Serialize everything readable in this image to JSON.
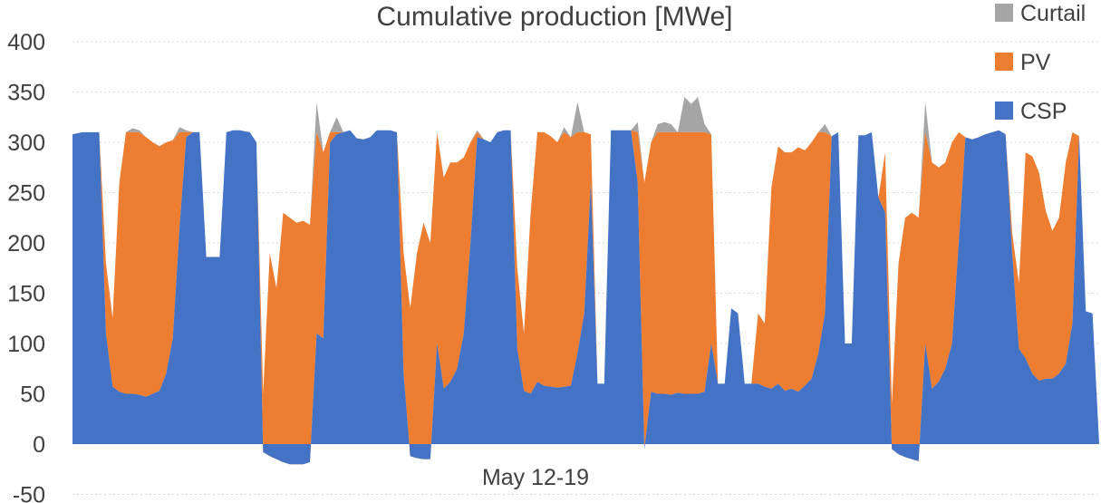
{
  "chart_data": {
    "type": "area",
    "title": "Cumulative production [MWe]",
    "xlabel": "May 12-19",
    "ylabel": "",
    "ylim": [
      -50,
      400
    ],
    "yticks": [
      -50,
      0,
      50,
      100,
      150,
      200,
      250,
      300,
      350,
      400
    ],
    "grid": true,
    "legend_position": "top-right",
    "stacked": true,
    "series": [
      {
        "name": "Curtail",
        "color": "#a5a5a5"
      },
      {
        "name": "PV",
        "color": "#ed7d31"
      },
      {
        "name": "CSP",
        "color": "#4472c4"
      }
    ],
    "total_points": [
      [
        0,
        308
      ],
      [
        3,
        310
      ],
      [
        8,
        310
      ],
      [
        10,
        180
      ],
      [
        12,
        125
      ],
      [
        14,
        260
      ],
      [
        16,
        310
      ],
      [
        18,
        314
      ],
      [
        20,
        312
      ],
      [
        22,
        305
      ],
      [
        24,
        300
      ],
      [
        26,
        296
      ],
      [
        28,
        300
      ],
      [
        30,
        302
      ],
      [
        32,
        315
      ],
      [
        34,
        312
      ],
      [
        36,
        310
      ],
      [
        38,
        310
      ],
      [
        40,
        186
      ],
      [
        42,
        186
      ],
      [
        44,
        186
      ],
      [
        46,
        310
      ],
      [
        48,
        312
      ],
      [
        50,
        312
      ],
      [
        53,
        310
      ],
      [
        55,
        300
      ],
      [
        57,
        50
      ],
      [
        59,
        190
      ],
      [
        61,
        155
      ],
      [
        63,
        230
      ],
      [
        65,
        225
      ],
      [
        67,
        220
      ],
      [
        69,
        222
      ],
      [
        71,
        218
      ],
      [
        73,
        340
      ],
      [
        75,
        290
      ],
      [
        77,
        310
      ],
      [
        79,
        325
      ],
      [
        81,
        310
      ],
      [
        83,
        312
      ],
      [
        85,
        304
      ],
      [
        87,
        303
      ],
      [
        89,
        305
      ],
      [
        91,
        312
      ],
      [
        93,
        312
      ],
      [
        95,
        312
      ],
      [
        97,
        310
      ],
      [
        99,
        190
      ],
      [
        101,
        135
      ],
      [
        103,
        190
      ],
      [
        105,
        220
      ],
      [
        107,
        200
      ],
      [
        109,
        310
      ],
      [
        111,
        265
      ],
      [
        113,
        280
      ],
      [
        115,
        280
      ],
      [
        117,
        285
      ],
      [
        119,
        300
      ],
      [
        121,
        312
      ],
      [
        123,
        303
      ],
      [
        125,
        300
      ],
      [
        127,
        310
      ],
      [
        129,
        312
      ],
      [
        131,
        312
      ],
      [
        133,
        175
      ],
      [
        135,
        110
      ],
      [
        137,
        230
      ],
      [
        139,
        310
      ],
      [
        141,
        310
      ],
      [
        143,
        306
      ],
      [
        145,
        300
      ],
      [
        147,
        315
      ],
      [
        149,
        305
      ],
      [
        151,
        340
      ],
      [
        153,
        310
      ],
      [
        155,
        308
      ],
      [
        157,
        60
      ],
      [
        159,
        60
      ],
      [
        161,
        312
      ],
      [
        163,
        312
      ],
      [
        165,
        312
      ],
      [
        167,
        312
      ],
      [
        169,
        320
      ],
      [
        171,
        260
      ],
      [
        173,
        300
      ],
      [
        175,
        318
      ],
      [
        177,
        320
      ],
      [
        179,
        318
      ],
      [
        181,
        310
      ],
      [
        183,
        345
      ],
      [
        185,
        338
      ],
      [
        187,
        345
      ],
      [
        189,
        318
      ],
      [
        191,
        308
      ],
      [
        193,
        60
      ],
      [
        195,
        60
      ],
      [
        197,
        135
      ],
      [
        199,
        130
      ],
      [
        201,
        60
      ],
      [
        203,
        60
      ],
      [
        205,
        130
      ],
      [
        207,
        120
      ],
      [
        209,
        255
      ],
      [
        211,
        296
      ],
      [
        213,
        290
      ],
      [
        215,
        290
      ],
      [
        217,
        295
      ],
      [
        219,
        292
      ],
      [
        221,
        300
      ],
      [
        223,
        310
      ],
      [
        225,
        318
      ],
      [
        227,
        306
      ],
      [
        229,
        310
      ],
      [
        231,
        100
      ],
      [
        233,
        100
      ],
      [
        235,
        307
      ],
      [
        237,
        307
      ],
      [
        239,
        310
      ],
      [
        241,
        245
      ],
      [
        243,
        290
      ],
      [
        245,
        40
      ],
      [
        247,
        180
      ],
      [
        249,
        225
      ],
      [
        251,
        230
      ],
      [
        253,
        225
      ],
      [
        255,
        340
      ],
      [
        257,
        280
      ],
      [
        259,
        275
      ],
      [
        261,
        280
      ],
      [
        263,
        300
      ],
      [
        265,
        310
      ],
      [
        267,
        305
      ],
      [
        269,
        303
      ],
      [
        271,
        305
      ],
      [
        273,
        308
      ],
      [
        275,
        310
      ],
      [
        277,
        312
      ],
      [
        279,
        308
      ],
      [
        281,
        210
      ],
      [
        283,
        160
      ],
      [
        285,
        290
      ],
      [
        287,
        286
      ],
      [
        289,
        270
      ],
      [
        291,
        232
      ],
      [
        293,
        212
      ],
      [
        295,
        225
      ],
      [
        297,
        280
      ],
      [
        299,
        310
      ],
      [
        301,
        306
      ],
      [
        303,
        132
      ],
      [
        305,
        130
      ],
      [
        307,
        0
      ]
    ],
    "base_points": [
      [
        0,
        308
      ],
      [
        3,
        310
      ],
      [
        8,
        310
      ],
      [
        10,
        110
      ],
      [
        12,
        57
      ],
      [
        14,
        52
      ],
      [
        16,
        50
      ],
      [
        18,
        50
      ],
      [
        20,
        49
      ],
      [
        22,
        47
      ],
      [
        24,
        50
      ],
      [
        26,
        53
      ],
      [
        28,
        70
      ],
      [
        30,
        105
      ],
      [
        32,
        215
      ],
      [
        34,
        305
      ],
      [
        36,
        310
      ],
      [
        38,
        310
      ],
      [
        40,
        186
      ],
      [
        42,
        186
      ],
      [
        44,
        186
      ],
      [
        46,
        310
      ],
      [
        48,
        312
      ],
      [
        50,
        312
      ],
      [
        53,
        310
      ],
      [
        55,
        300
      ],
      [
        57,
        -8
      ],
      [
        59,
        -12
      ],
      [
        61,
        -15
      ],
      [
        63,
        -18
      ],
      [
        65,
        -20
      ],
      [
        67,
        -20
      ],
      [
        69,
        -20
      ],
      [
        71,
        -18
      ],
      [
        73,
        110
      ],
      [
        75,
        105
      ],
      [
        77,
        300
      ],
      [
        79,
        308
      ],
      [
        81,
        310
      ],
      [
        83,
        312
      ],
      [
        85,
        304
      ],
      [
        87,
        303
      ],
      [
        89,
        305
      ],
      [
        91,
        312
      ],
      [
        93,
        312
      ],
      [
        95,
        312
      ],
      [
        97,
        310
      ],
      [
        99,
        70
      ],
      [
        101,
        -12
      ],
      [
        103,
        -14
      ],
      [
        105,
        -15
      ],
      [
        107,
        -15
      ],
      [
        109,
        100
      ],
      [
        111,
        55
      ],
      [
        113,
        62
      ],
      [
        115,
        75
      ],
      [
        117,
        110
      ],
      [
        119,
        200
      ],
      [
        121,
        305
      ],
      [
        123,
        303
      ],
      [
        125,
        300
      ],
      [
        127,
        310
      ],
      [
        129,
        312
      ],
      [
        131,
        312
      ],
      [
        133,
        95
      ],
      [
        135,
        53
      ],
      [
        137,
        50
      ],
      [
        139,
        62
      ],
      [
        141,
        58
      ],
      [
        143,
        57
      ],
      [
        145,
        56
      ],
      [
        147,
        57
      ],
      [
        149,
        58
      ],
      [
        151,
        90
      ],
      [
        153,
        130
      ],
      [
        155,
        260
      ],
      [
        157,
        60
      ],
      [
        159,
        60
      ],
      [
        161,
        312
      ],
      [
        163,
        312
      ],
      [
        165,
        312
      ],
      [
        167,
        312
      ],
      [
        169,
        260
      ],
      [
        171,
        -5
      ],
      [
        173,
        52
      ],
      [
        175,
        50
      ],
      [
        177,
        50
      ],
      [
        179,
        49
      ],
      [
        181,
        51
      ],
      [
        183,
        50
      ],
      [
        185,
        50
      ],
      [
        187,
        50
      ],
      [
        189,
        52
      ],
      [
        191,
        100
      ],
      [
        193,
        60
      ],
      [
        195,
        60
      ],
      [
        197,
        135
      ],
      [
        199,
        130
      ],
      [
        201,
        60
      ],
      [
        203,
        60
      ],
      [
        205,
        60
      ],
      [
        207,
        57
      ],
      [
        209,
        55
      ],
      [
        211,
        60
      ],
      [
        213,
        53
      ],
      [
        215,
        55
      ],
      [
        217,
        52
      ],
      [
        219,
        58
      ],
      [
        221,
        65
      ],
      [
        223,
        90
      ],
      [
        225,
        130
      ],
      [
        227,
        306
      ],
      [
        229,
        310
      ],
      [
        231,
        100
      ],
      [
        233,
        100
      ],
      [
        235,
        307
      ],
      [
        237,
        307
      ],
      [
        239,
        310
      ],
      [
        241,
        245
      ],
      [
        243,
        230
      ],
      [
        245,
        -5
      ],
      [
        247,
        -10
      ],
      [
        249,
        -13
      ],
      [
        251,
        -15
      ],
      [
        253,
        -17
      ],
      [
        255,
        100
      ],
      [
        257,
        55
      ],
      [
        259,
        62
      ],
      [
        261,
        75
      ],
      [
        263,
        100
      ],
      [
        265,
        200
      ],
      [
        267,
        305
      ],
      [
        269,
        303
      ],
      [
        271,
        305
      ],
      [
        273,
        308
      ],
      [
        275,
        310
      ],
      [
        277,
        312
      ],
      [
        279,
        308
      ],
      [
        281,
        190
      ],
      [
        283,
        95
      ],
      [
        285,
        85
      ],
      [
        287,
        70
      ],
      [
        289,
        63
      ],
      [
        291,
        65
      ],
      [
        293,
        65
      ],
      [
        295,
        70
      ],
      [
        297,
        80
      ],
      [
        299,
        120
      ],
      [
        301,
        306
      ],
      [
        303,
        132
      ],
      [
        305,
        130
      ],
      [
        307,
        0
      ]
    ],
    "pv_cap": 310
  }
}
